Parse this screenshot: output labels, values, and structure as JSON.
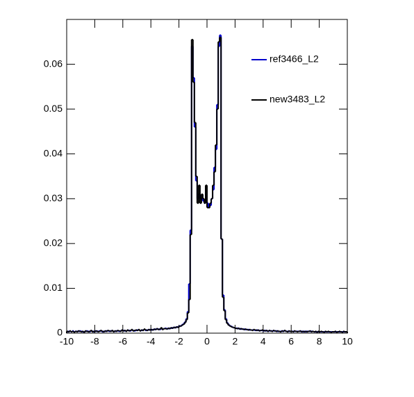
{
  "chart_data": {
    "type": "histogram",
    "xlim": [
      -10,
      10
    ],
    "xticks": [
      -10,
      -8,
      -6,
      -4,
      -2,
      0,
      2,
      4,
      6,
      8,
      10
    ],
    "ylim": [
      0,
      0.07
    ],
    "yticks": [
      0,
      0.01,
      0.02,
      0.03,
      0.04,
      0.05,
      0.06
    ],
    "bins": [
      -10,
      -9.9,
      -9.8,
      -9.7,
      -9.6,
      -9.5,
      -9.4,
      -9.3,
      -9.2,
      -9.1,
      -9,
      -8.9,
      -8.8,
      -8.7,
      -8.6,
      -8.5,
      -8.4,
      -8.3,
      -8.2,
      -8.1,
      -8,
      -7.9,
      -7.8,
      -7.7,
      -7.6,
      -7.5,
      -7.4,
      -7.3,
      -7.2,
      -7.1,
      -7,
      -6.9,
      -6.8,
      -6.7,
      -6.6,
      -6.5,
      -6.4,
      -6.3,
      -6.2,
      -6.1,
      -6,
      -5.9,
      -5.8,
      -5.7,
      -5.6,
      -5.5,
      -5.4,
      -5.3,
      -5.2,
      -5.1,
      -5,
      -4.9,
      -4.8,
      -4.7,
      -4.6,
      -4.5,
      -4.4,
      -4.3,
      -4.2,
      -4.1,
      -4,
      -3.9,
      -3.8,
      -3.7,
      -3.6,
      -3.5,
      -3.4,
      -3.3,
      -3.2,
      -3.1,
      -3,
      -2.9,
      -2.8,
      -2.7,
      -2.6,
      -2.5,
      -2.4,
      -2.3,
      -2.2,
      -2.1,
      -2,
      -1.9,
      -1.8,
      -1.7,
      -1.6,
      -1.5,
      -1.4,
      -1.3,
      -1.2,
      -1.1,
      -1,
      -0.9,
      -0.8,
      -0.7,
      -0.6,
      -0.5,
      -0.4,
      -0.3,
      -0.2,
      -0.1,
      0,
      0.1,
      0.2,
      0.3,
      0.4,
      0.5,
      0.6,
      0.7,
      0.8,
      0.9,
      1,
      1.1,
      1.2,
      1.3,
      1.4,
      1.5,
      1.6,
      1.7,
      1.8,
      1.9,
      2,
      2.1,
      2.2,
      2.3,
      2.4,
      2.5,
      2.6,
      2.7,
      2.8,
      2.9,
      3,
      3.1,
      3.2,
      3.3,
      3.4,
      3.5,
      3.6,
      3.7,
      3.8,
      3.9,
      4,
      4.1,
      4.2,
      4.3,
      4.4,
      4.5,
      4.6,
      4.7,
      4.8,
      4.9,
      5,
      5.1,
      5.2,
      5.3,
      5.4,
      5.5,
      5.6,
      5.7,
      5.8,
      5.9,
      6,
      6.1,
      6.2,
      6.3,
      6.4,
      6.5,
      6.6,
      6.7,
      6.8,
      6.9,
      7,
      7.1,
      7.2,
      7.3,
      7.4,
      7.5,
      7.6,
      7.7,
      7.8,
      7.9,
      8,
      8.1,
      8.2,
      8.3,
      8.4,
      8.5,
      8.6,
      8.7,
      8.8,
      8.9,
      9,
      9.1,
      9.2,
      9.3,
      9.4,
      9.5,
      9.6,
      9.7,
      9.8,
      9.9,
      10
    ],
    "series": [
      {
        "name": "ref3466_L2",
        "color": "#0000cc",
        "values": [
          0.0003,
          0.0004,
          0.0004,
          0.0003,
          0.0005,
          0.0003,
          0.0004,
          0.0004,
          0.0004,
          0.0005,
          0.0004,
          0.0003,
          0.0003,
          0.0004,
          0.0005,
          0.0004,
          0.0003,
          0.0005,
          0.0004,
          0.0003,
          0.0005,
          0.0004,
          0.0004,
          0.0005,
          0.0005,
          0.0003,
          0.0004,
          0.0004,
          0.0005,
          0.0005,
          0.0004,
          0.0005,
          0.0005,
          0.0004,
          0.0004,
          0.0005,
          0.0005,
          0.0004,
          0.0005,
          0.0006,
          0.0006,
          0.0005,
          0.0005,
          0.0006,
          0.0006,
          0.0005,
          0.0007,
          0.0006,
          0.0005,
          0.0006,
          0.0007,
          0.0007,
          0.0006,
          0.0006,
          0.0007,
          0.0008,
          0.0006,
          0.0007,
          0.0007,
          0.0008,
          0.0007,
          0.0008,
          0.0008,
          0.0009,
          0.0009,
          0.0009,
          0.0008,
          0.001,
          0.0009,
          0.001,
          0.0011,
          0.001,
          0.001,
          0.0011,
          0.0011,
          0.0012,
          0.0012,
          0.0013,
          0.0013,
          0.0014,
          0.0016,
          0.0016,
          0.0019,
          0.0021,
          0.0025,
          0.0032,
          0.0048,
          0.011,
          0.023,
          0.064,
          0.057,
          0.046,
          0.034,
          0.03,
          0.031,
          0.03,
          0.03,
          0.0295,
          0.029,
          0.031,
          0.029,
          0.028,
          0.0285,
          0.03,
          0.032,
          0.037,
          0.041,
          0.051,
          0.064,
          0.0665,
          0.021,
          0.0085,
          0.0052,
          0.0032,
          0.0023,
          0.0019,
          0.0016,
          0.0015,
          0.0013,
          0.0012,
          0.0011,
          0.0011,
          0.001,
          0.001,
          0.0009,
          0.0009,
          0.0009,
          0.0008,
          0.0008,
          0.0008,
          0.0007,
          0.0007,
          0.0007,
          0.0007,
          0.0006,
          0.0007,
          0.0006,
          0.0006,
          0.0006,
          0.0006,
          0.0005,
          0.0006,
          0.0005,
          0.0005,
          0.0005,
          0.0005,
          0.0005,
          0.0005,
          0.0005,
          0.0005,
          0.0004,
          0.0004,
          0.0004,
          0.0004,
          0.0005,
          0.0005,
          0.0004,
          0.0004,
          0.0004,
          0.0004,
          0.0004,
          0.0004,
          0.0004,
          0.0004,
          0.0004,
          0.0004,
          0.0004,
          0.0004,
          0.0003,
          0.0004,
          0.0003,
          0.0004,
          0.0004,
          0.0004,
          0.0004,
          0.0004,
          0.0003,
          0.0003,
          0.0003,
          0.0003,
          0.0003,
          0.0003,
          0.0003,
          0.0003,
          0.0003,
          0.0003,
          0.0003,
          0.0003,
          0.0003,
          0.0003,
          0.0003,
          0.0003,
          0.0003,
          0.0003,
          0.0003,
          0.0003,
          0.0003,
          0.0003,
          0.0003,
          0.0003
        ]
      },
      {
        "name": "new3483_L2",
        "color": "#000000",
        "values": [
          0.0004,
          0.0003,
          0.0005,
          0.0003,
          0.0004,
          0.0002,
          0.0004,
          0.0003,
          0.0005,
          0.0004,
          0.0003,
          0.0004,
          0.0002,
          0.0005,
          0.0004,
          0.0003,
          0.0004,
          0.0006,
          0.0003,
          0.0004,
          0.0004,
          0.0005,
          0.0003,
          0.0004,
          0.0006,
          0.0004,
          0.0003,
          0.0005,
          0.0004,
          0.0006,
          0.0005,
          0.0004,
          0.0006,
          0.0003,
          0.0005,
          0.0004,
          0.0006,
          0.0005,
          0.0004,
          0.0007,
          0.0005,
          0.0006,
          0.0004,
          0.0007,
          0.0005,
          0.0006,
          0.0008,
          0.0005,
          0.0006,
          0.0007,
          0.0006,
          0.0008,
          0.0005,
          0.0007,
          0.0006,
          0.0009,
          0.0007,
          0.0006,
          0.0008,
          0.0007,
          0.0008,
          0.0007,
          0.0009,
          0.0008,
          0.001,
          0.0008,
          0.0009,
          0.0012,
          0.0008,
          0.001,
          0.001,
          0.0009,
          0.0011,
          0.001,
          0.0012,
          0.0011,
          0.0013,
          0.0012,
          0.0014,
          0.0013,
          0.0015,
          0.0016,
          0.0018,
          0.002,
          0.0024,
          0.003,
          0.0045,
          0.0075,
          0.022,
          0.0655,
          0.056,
          0.047,
          0.035,
          0.029,
          0.033,
          0.029,
          0.031,
          0.03,
          0.029,
          0.033,
          0.028,
          0.028,
          0.029,
          0.03,
          0.033,
          0.036,
          0.042,
          0.05,
          0.065,
          0.066,
          0.021,
          0.008,
          0.005,
          0.003,
          0.0022,
          0.0018,
          0.0016,
          0.0014,
          0.0013,
          0.0012,
          0.0011,
          0.001,
          0.0011,
          0.0009,
          0.001,
          0.0009,
          0.0008,
          0.0009,
          0.0008,
          0.0007,
          0.0008,
          0.0007,
          0.0006,
          0.0008,
          0.0007,
          0.0006,
          0.0007,
          0.0005,
          0.0006,
          0.0007,
          0.0006,
          0.0005,
          0.0006,
          0.0004,
          0.0006,
          0.0005,
          0.0004,
          0.0006,
          0.0005,
          0.0004,
          0.0005,
          0.0004,
          0.0003,
          0.0005,
          0.0004,
          0.0006,
          0.0004,
          0.0003,
          0.0005,
          0.0004,
          0.0004,
          0.0003,
          0.0005,
          0.0004,
          0.0003,
          0.0004,
          0.0005,
          0.0003,
          0.0004,
          0.0003,
          0.0004,
          0.0003,
          0.0004,
          0.0005,
          0.0003,
          0.0004,
          0.0003,
          0.0004,
          0.0002,
          0.0004,
          0.0003,
          0.0004,
          0.0003,
          0.0002,
          0.0004,
          0.0003,
          0.0004,
          0.0003,
          0.0002,
          0.0003,
          0.0003,
          0.0004,
          0.0002,
          0.0003,
          0.0004,
          0.0003,
          0.0002,
          0.0004,
          0.0003,
          0.0003
        ]
      }
    ],
    "legend": "top-right"
  }
}
